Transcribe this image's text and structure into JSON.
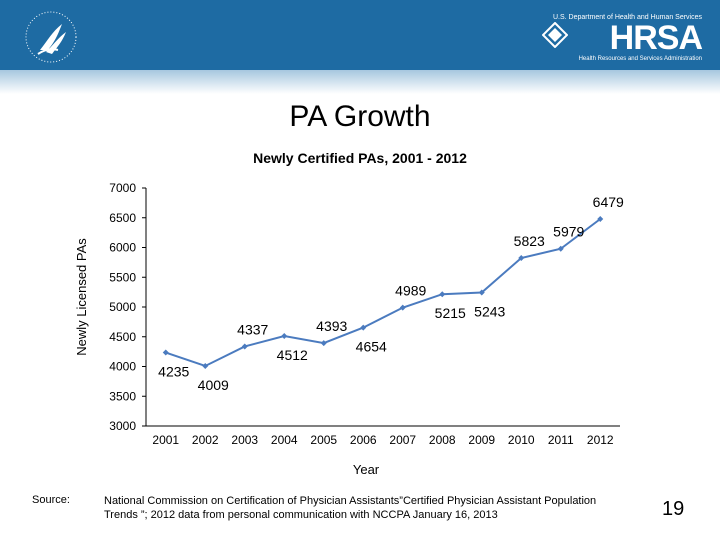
{
  "slide": {
    "title": "PA Growth",
    "page_number": "19",
    "source_label": "Source:",
    "source_text": "National Commission on Certification of Physician Assistants”Certified Physician Assistant Population Trends ”; 2012 data from personal communication with NCCPA January 16, 2013"
  },
  "header": {
    "hrsa_top": "U.S. Department of Health and Human Services",
    "hrsa_name": "HRSA",
    "hrsa_sub": "Health Resources and Services Administration"
  },
  "colors": {
    "header": "#1e6ba3",
    "line": "#4b7bbf"
  },
  "chart_data": {
    "type": "line",
    "title": "Newly Certified PAs, 2001 - 2012",
    "xlabel": "Year",
    "ylabel": "Newly Licensed PAs",
    "ylim": [
      3000,
      7000
    ],
    "yticks": [
      "3000",
      "3500",
      "4000",
      "4500",
      "5000",
      "5500",
      "6000",
      "6500",
      "7000"
    ],
    "categories": [
      "2001",
      "2002",
      "2003",
      "2004",
      "2005",
      "2006",
      "2007",
      "2008",
      "2009",
      "2010",
      "2011",
      "2012"
    ],
    "values": [
      4235,
      4009,
      4337,
      4512,
      4393,
      4654,
      4989,
      5215,
      5243,
      5823,
      5979,
      6479
    ],
    "value_labels": [
      "4235",
      "4009",
      "4337",
      "4512",
      "4393",
      "4654",
      "4989",
      "5215",
      "5243",
      "5823",
      "5979",
      "6479"
    ],
    "grid": false,
    "legend": "none"
  }
}
